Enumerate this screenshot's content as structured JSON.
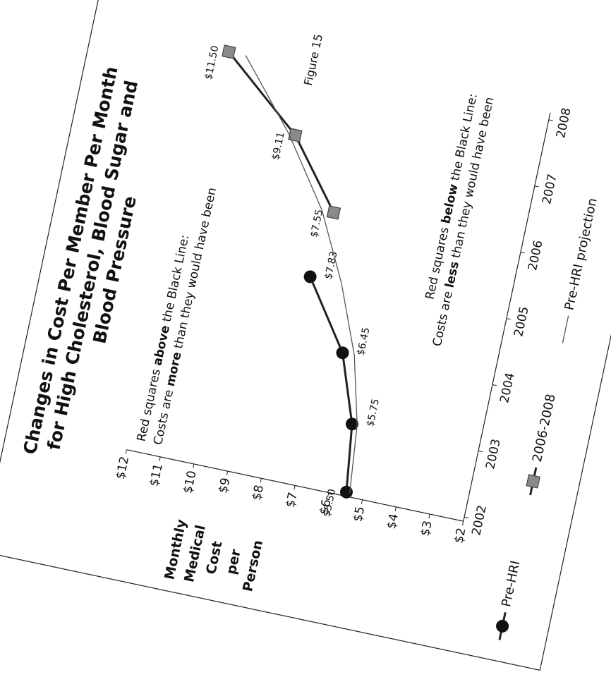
{
  "figure_label": "Figure 15",
  "chart_data": {
    "type": "line",
    "title_lines": [
      "Changes in Cost Per Member Per Month",
      "for High Cholesterol, Blood Sugar and",
      "Blood Pressure"
    ],
    "y_label_lines": [
      "Monthly",
      "Medical",
      "Cost",
      "per",
      "Person"
    ],
    "xlim": [
      2002,
      2008
    ],
    "xticks": [
      2002,
      2003,
      2004,
      2005,
      2006,
      2007,
      2008
    ],
    "ylim": [
      2,
      12
    ],
    "yticks": [
      {
        "value": 2,
        "label": "$2"
      },
      {
        "value": 3,
        "label": "$3"
      },
      {
        "value": 4,
        "label": "$4"
      },
      {
        "value": 5,
        "label": "$5"
      },
      {
        "value": 6,
        "label": "$6"
      },
      {
        "value": 7,
        "label": "$7"
      },
      {
        "value": 8,
        "label": "$8"
      },
      {
        "value": 9,
        "label": "$9"
      },
      {
        "value": 10,
        "label": "$10"
      },
      {
        "value": 11,
        "label": "$11"
      },
      {
        "value": 12,
        "label": "$12"
      }
    ],
    "series": [
      {
        "name": "Pre-HRI",
        "color": "#111111",
        "marker": "circle",
        "x": [
          2002,
          2003,
          2004,
          2005
        ],
        "values": [
          5.5,
          5.75,
          6.45,
          7.83
        ],
        "value_labels": [
          "$5.50",
          "$5.75",
          "$6.45",
          "$7.83"
        ]
      },
      {
        "name": "2006-2008",
        "color": "#8a8a8a",
        "marker": "square",
        "x": [
          2006,
          2007,
          2008
        ],
        "values": [
          7.55,
          9.11,
          11.5
        ],
        "value_labels": [
          "$7.55",
          "$9.11",
          "$11.50"
        ]
      },
      {
        "name": "Pre-HRI projection",
        "color": "#555555",
        "marker": "none",
        "x": [
          2002,
          2003,
          2004,
          2005,
          2006,
          2007,
          2008
        ],
        "values": [
          5.4,
          5.6,
          6.1,
          6.9,
          7.9,
          9.3,
          11.0
        ]
      }
    ],
    "annotations": [
      {
        "lines": [
          [
            {
              "text": "Red squares "
            },
            {
              "text": "above",
              "bold": true
            },
            {
              "text": " the Black Line:"
            }
          ],
          [
            {
              "text": "Costs are "
            },
            {
              "text": "more",
              "bold": true
            },
            {
              "text": " than they would have been"
            }
          ]
        ]
      },
      {
        "lines": [
          [
            {
              "text": "Red squares "
            },
            {
              "text": "below",
              "bold": true
            },
            {
              "text": " the Black Line:"
            }
          ],
          [
            {
              "text": "Costs are "
            },
            {
              "text": "less",
              "bold": true
            },
            {
              "text": " than they would have been"
            }
          ]
        ]
      }
    ]
  }
}
